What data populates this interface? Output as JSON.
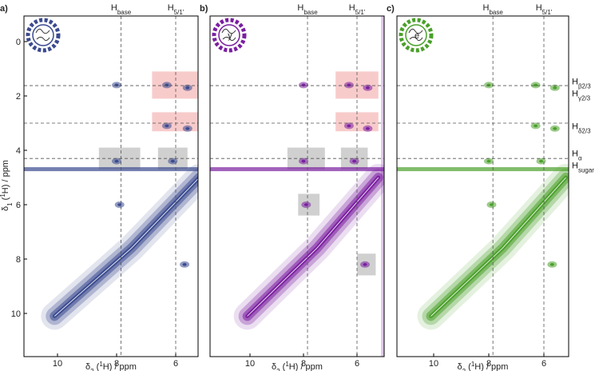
{
  "panels": [
    {
      "label": "a)",
      "icon_text": "",
      "color": "#3b4a8f"
    },
    {
      "label": "b)",
      "icon_text": "y",
      "color": "#7a1fa0"
    },
    {
      "label": "c)",
      "icon_text": "e",
      "color": "#4aa02a"
    }
  ],
  "top_labels": [
    {
      "main": "H",
      "sub": "base"
    },
    {
      "main": "H",
      "sub": "5/1'"
    }
  ],
  "x_ticks": [
    "10",
    "8",
    "6"
  ],
  "y_ticks": [
    "0",
    "2",
    "4",
    "6",
    "8",
    "10"
  ],
  "x_axis_label": {
    "symbol": "δ",
    "sub": "2",
    "open": " (",
    "sup": "1",
    "rest": "H) / ppm"
  },
  "y_axis_label": {
    "symbol": "δ",
    "sub": "1",
    "open": " (",
    "sup": "1",
    "rest": "H) / ppm"
  },
  "right_labels": [
    {
      "main": "H",
      "sub": "β2/3"
    },
    {
      "main": "H",
      "sub": "γ2/3"
    },
    {
      "main": "H",
      "sub": "δ2/3"
    },
    {
      "main": "H",
      "sub": "α"
    },
    {
      "main": "H",
      "sub": "sugar"
    }
  ]
}
